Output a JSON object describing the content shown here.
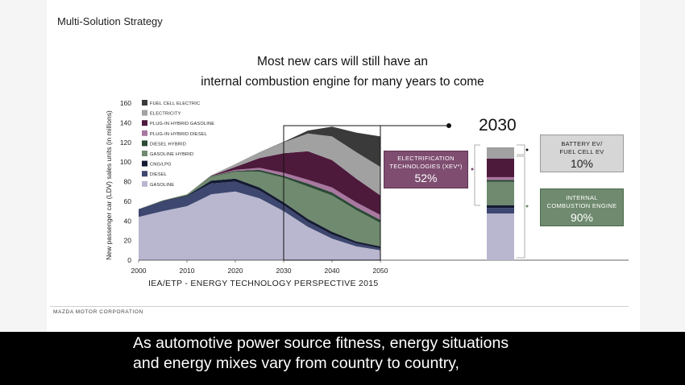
{
  "header": {
    "section_title": "Multi-Solution Strategy"
  },
  "headline": {
    "line1": "Most new cars will still have an",
    "line2": "internal combustion engine for many years to come"
  },
  "chart_data": {
    "type": "area",
    "stacked": true,
    "x": [
      2000,
      2005,
      2010,
      2015,
      2020,
      2025,
      2030,
      2035,
      2040,
      2045,
      2050
    ],
    "ylabel": "New passenger car (LDV) sales units (in millions)",
    "xlabel": "",
    "ylim": [
      0,
      160
    ],
    "yticks": [
      0,
      20,
      40,
      60,
      80,
      100,
      120,
      140,
      160
    ],
    "xticks": [
      2000,
      2010,
      2020,
      2030,
      2040,
      2050
    ],
    "series": [
      {
        "name": "GASOLINE",
        "color": "#b9b7cf",
        "values": [
          44,
          50,
          55,
          67,
          70,
          63,
          50,
          34,
          22,
          14,
          10
        ]
      },
      {
        "name": "DIESEL",
        "color": "#3d4770",
        "values": [
          8,
          10,
          10,
          11,
          10,
          8,
          6,
          5,
          4,
          3,
          2
        ]
      },
      {
        "name": "CNG/LPG",
        "color": "#141b33",
        "values": [
          0,
          0.5,
          1,
          3,
          3,
          3,
          3,
          3,
          3,
          2,
          2
        ]
      },
      {
        "name": "GASOLINE HYBRID",
        "color": "#6f8a6e",
        "values": [
          0,
          0.5,
          1,
          4,
          7,
          16,
          25,
          33,
          37,
          32,
          24
        ]
      },
      {
        "name": "DIESEL HYBRID",
        "color": "#2b4a36",
        "values": [
          0,
          0,
          0,
          0.5,
          1,
          2,
          2,
          3,
          3,
          3,
          3
        ]
      },
      {
        "name": "PLUG-IN HYBRID DIESEL",
        "color": "#a978a1",
        "values": [
          0,
          0,
          0,
          0,
          1,
          2,
          3,
          4,
          5,
          5,
          5
        ]
      },
      {
        "name": "PLUG-IN HYBRID GASOLINE",
        "color": "#4d1a3c",
        "values": [
          0,
          0,
          0,
          0.5,
          3,
          10,
          20,
          29,
          28,
          24,
          20
        ]
      },
      {
        "name": "ELECTRICITY",
        "color": "#a1a1a1",
        "values": [
          0,
          0,
          0,
          0.5,
          3,
          6,
          11,
          18,
          24,
          27,
          29
        ]
      },
      {
        "name": "FUEL CELL ELECTRIC",
        "color": "#3a3a3a",
        "values": [
          0,
          0,
          0,
          0,
          0,
          0,
          0.5,
          3,
          10,
          20,
          31
        ]
      }
    ],
    "highlight_year": 2030,
    "source": "IEA/ETP - ENERGY TECHNOLOGY PERSPECTIVE 2015"
  },
  "detail": {
    "year": "2030",
    "electrification": {
      "label1": "ELECTRIFICATION",
      "label2": "TECHNOLOGIES (xEV*)",
      "percent": "52%",
      "color": "#7e4d70"
    },
    "battery": {
      "label1": "BATTERY EV/",
      "label2": "FUEL CELL EV",
      "percent": "10%",
      "color": "#d6d6d6"
    },
    "ice": {
      "label1": "INTERNAL",
      "label2": "COMBUSTION ENGINE",
      "percent": "90%",
      "color": "#6f8a6e"
    }
  },
  "footer": {
    "company": "MAZDA MOTOR CORPORATION"
  },
  "subtitles": {
    "line1": "As automotive power source fitness, energy situations",
    "line2": "and energy mixes vary from country to country,"
  }
}
